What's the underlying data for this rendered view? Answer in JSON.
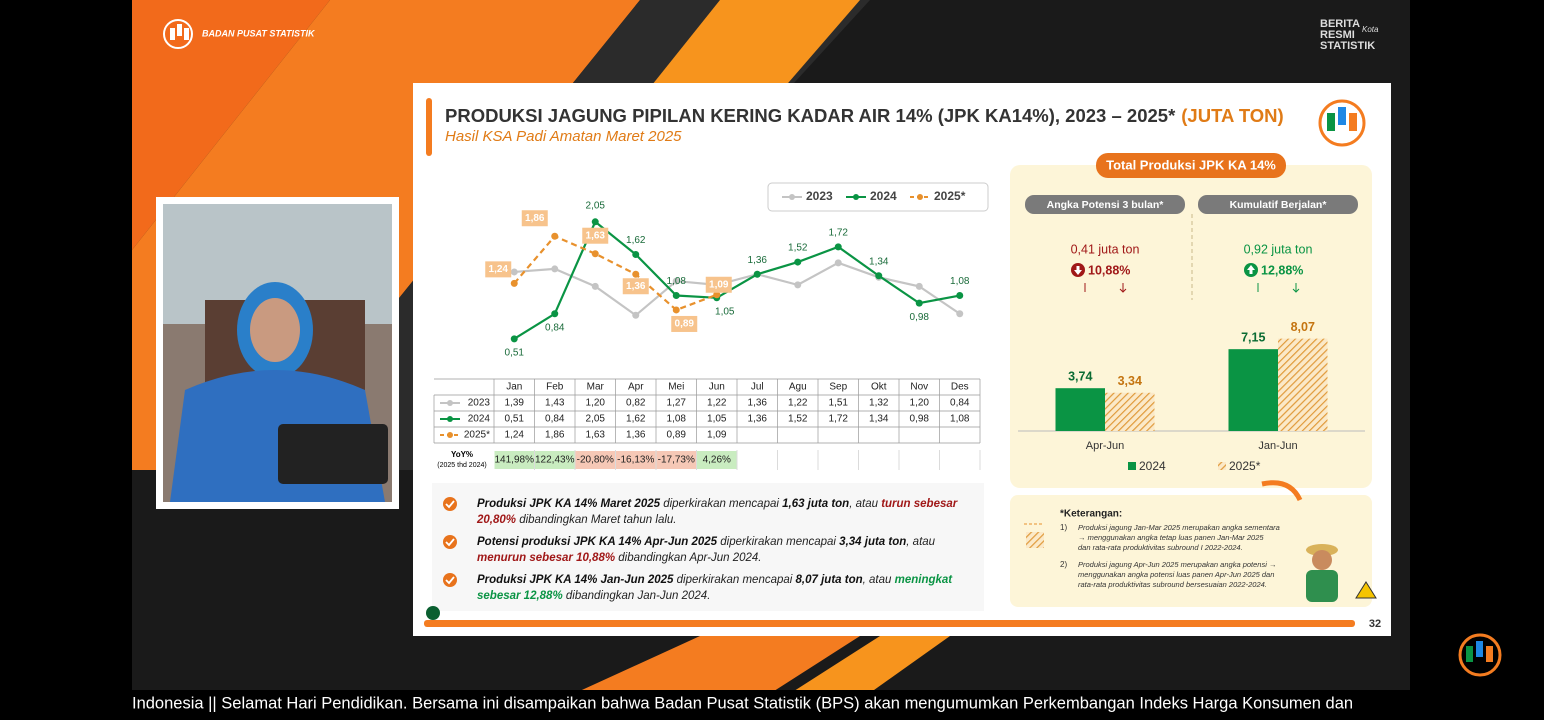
{
  "header": {
    "org": "BADAN PUSAT STATISTIK",
    "brs": [
      "BERITA",
      "RESMI",
      "STATISTIK"
    ],
    "brs_script": "Kota"
  },
  "slide": {
    "title": "PRODUKSI JAGUNG PIPILAN KERING KADAR AIR 14% (JPK KA14%), 2023 – 2025*",
    "title_unit": "(JUTA TON)",
    "subtitle": "Hasil KSA Padi Amatan Maret 2025",
    "page_number": "32"
  },
  "chart_data": [
    {
      "type": "line",
      "categories": [
        "Jan",
        "Feb",
        "Mar",
        "Apr",
        "Mei",
        "Jun",
        "Jul",
        "Agu",
        "Sep",
        "Okt",
        "Nov",
        "Des"
      ],
      "ylim": [
        0.1,
        2.6
      ],
      "series": [
        {
          "name": "2023",
          "color": "#c4c4c4",
          "dashed": false,
          "values": [
            1.39,
            1.43,
            1.2,
            0.82,
            1.27,
            1.22,
            1.36,
            1.22,
            1.51,
            1.32,
            1.2,
            0.84
          ],
          "value_labels": [
            "1,39",
            "1,43",
            "1,20",
            "0,82",
            "1,27",
            "1,22",
            "1,36",
            "1,22",
            "1,51",
            "1,32",
            "1,20",
            "0,84"
          ]
        },
        {
          "name": "2024",
          "color": "#0a9444",
          "dashed": false,
          "values": [
            0.51,
            0.84,
            2.05,
            1.62,
            1.08,
            1.05,
            1.36,
            1.52,
            1.72,
            1.34,
            0.98,
            1.08
          ],
          "value_labels": [
            "0,51",
            "0,84",
            "2,05",
            "1,62",
            "1,08",
            "1,05",
            "1,36",
            "1,52",
            "1,72",
            "1,34",
            "0,98",
            "1,08"
          ]
        },
        {
          "name": "2025*",
          "color": "#e8912d",
          "dashed": true,
          "values": [
            1.24,
            1.86,
            1.63,
            1.36,
            0.89,
            1.09,
            null,
            null,
            null,
            null,
            null,
            null
          ],
          "value_labels": [
            "1,24",
            "1,86",
            "1,63",
            "1,36",
            "0,89",
            "1,09",
            null,
            null,
            null,
            null,
            null,
            null
          ]
        }
      ]
    },
    {
      "type": "bar",
      "title": "Total Produksi JPK KA 14%",
      "categories": [
        "Apr-Jun",
        "Jan-Jun"
      ],
      "ylim": [
        0,
        9
      ],
      "group_labels": [
        "Angka Potensi 3 bulan*",
        "Kumulatif Berjalan*"
      ],
      "changes": [
        {
          "amount": "0,41 juta ton",
          "pct": "10,88%",
          "direction": "down"
        },
        {
          "amount": "0,92 juta ton",
          "pct": "12,88%",
          "direction": "up"
        }
      ],
      "series": [
        {
          "name": "2024",
          "color": "#0a9444",
          "pattern": "solid",
          "values": [
            3.74,
            7.15
          ],
          "value_labels": [
            "3,74",
            "7,15"
          ]
        },
        {
          "name": "2025*",
          "color": "#e09a3a",
          "pattern": "hatch",
          "values": [
            3.34,
            8.07
          ],
          "value_labels": [
            "3,34",
            "8,07"
          ]
        }
      ]
    }
  ],
  "table": {
    "yoy_label": "YoY%",
    "yoy_note": "(2025 thd 2024)",
    "yoy": [
      "141,98%",
      "122,43%",
      "-20,80%",
      "-16,13%",
      "-17,73%",
      "4,26%"
    ]
  },
  "bullets": [
    {
      "lines": [
        [
          {
            "text": "Produksi JPK KA 14% Maret 2025",
            "style": "bold"
          },
          {
            "text": " diperkirakan mencapai ",
            "style": "normal"
          },
          {
            "text": "1,63 juta ton",
            "style": "bold"
          },
          {
            "text": ", atau ",
            "style": "normal"
          },
          {
            "text": "turun sebesar",
            "style": "red"
          }
        ],
        [
          {
            "text": "20,80%",
            "style": "red"
          },
          {
            "text": " dibandingkan Maret tahun lalu.",
            "style": "normal"
          }
        ]
      ]
    },
    {
      "lines": [
        [
          {
            "text": "Potensi produksi JPK KA 14% Apr-Jun 2025",
            "style": "bold"
          },
          {
            "text": " diperkirakan mencapai ",
            "style": "normal"
          },
          {
            "text": "3,34 juta ton",
            "style": "bold"
          },
          {
            "text": ", atau",
            "style": "normal"
          }
        ],
        [
          {
            "text": "menurun sebesar 10,88%",
            "style": "red"
          },
          {
            "text": " dibandingkan Apr-Jun 2024.",
            "style": "normal"
          }
        ]
      ]
    },
    {
      "lines": [
        [
          {
            "text": "Produksi JPK KA 14% Jan-Jun 2025",
            "style": "bold"
          },
          {
            "text": " diperkirakan mencapai ",
            "style": "normal"
          },
          {
            "text": "8,07 juta ton",
            "style": "bold"
          },
          {
            "text": ", atau ",
            "style": "normal"
          },
          {
            "text": "meningkat",
            "style": "green"
          }
        ],
        [
          {
            "text": "sebesar 12,88%",
            "style": "green"
          },
          {
            "text": " dibandingkan Jan-Jun 2024.",
            "style": "normal"
          }
        ]
      ]
    }
  ],
  "notes": {
    "title": "*Keterangan:",
    "items": [
      {
        "number": "1)",
        "lines": [
          "Produksi jagung Jan-Mar 2025 merupakan angka sementara",
          "→ menggunakan angka tetap luas panen Jan-Mar 2025",
          "dan rata-rata produktivitas subround I 2022-2024."
        ]
      },
      {
        "number": "2)",
        "lines": [
          "Produksi jagung Apr-Jun 2025 merupakan angka potensi →",
          "menggunakan angka potensi luas panen Apr-Jun 2025 dan",
          "rata-rata produktivitas subround bersesuaian 2022-2024."
        ]
      }
    ]
  },
  "ticker": "Indonesia || Selamat Hari Pendidikan. Bersama ini disampaikan bahwa Badan Pusat Statistik (BPS) akan mengumumkan Perkembangan Indeks Harga Konsumen dan"
}
